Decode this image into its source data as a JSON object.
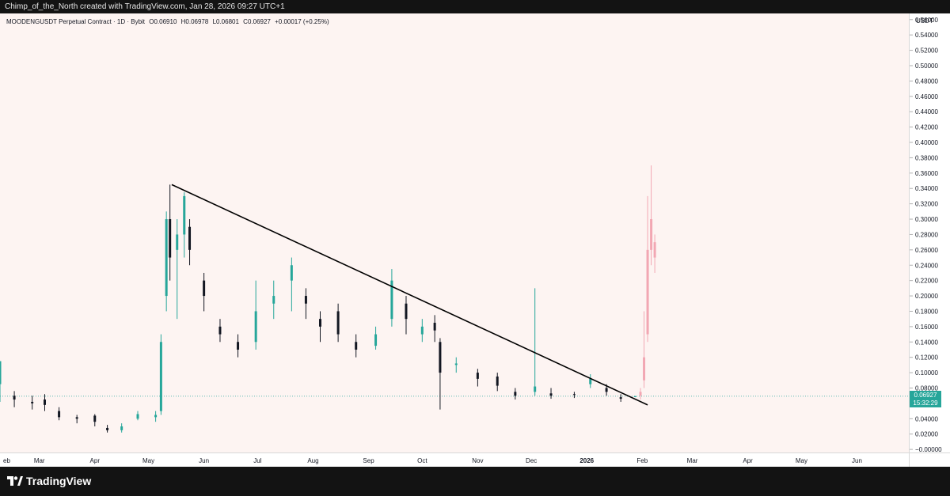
{
  "header": {
    "attribution": "Chimp_of_the_North created with TradingView.com, Jan 28, 2026 09:27 UTC+1"
  },
  "legend": {
    "symbol": "MOODENGUSDT Perpetual Contract · 1D · Bybit",
    "open": "O0.06910",
    "high": "H0.06978",
    "low": "L0.06801",
    "close": "C0.06927",
    "change": "+0.00017 (+0.25%)"
  },
  "price_axis": {
    "unit": "USDT"
  },
  "last_price": {
    "value": "0.06927",
    "countdown": "15:32:29"
  },
  "footer": {
    "brand": "TradingView"
  },
  "colors": {
    "up": "#26a69a",
    "down": "#131722",
    "projection": "#f2a7b3",
    "trendline": "#000000",
    "background": "#fdf4f2"
  },
  "chart_data": {
    "type": "candlestick",
    "symbol": "MOODENGUSDT",
    "timeframe": "1D",
    "x_ticks": [
      "eb",
      "Mar",
      "Apr",
      "May",
      "Jun",
      "Jul",
      "Aug",
      "Sep",
      "Oct",
      "Nov",
      "Dec",
      "2026",
      "Feb",
      "Mar",
      "Apr",
      "May",
      "Jun"
    ],
    "y_ticks": [
      "0.56000",
      "0.54000",
      "0.52000",
      "0.50000",
      "0.48000",
      "0.46000",
      "0.44000",
      "0.42000",
      "0.40000",
      "0.38000",
      "0.36000",
      "0.34000",
      "0.32000",
      "0.30000",
      "0.28000",
      "0.26000",
      "0.24000",
      "0.22000",
      "0.20000",
      "0.18000",
      "0.16000",
      "0.14000",
      "0.12000",
      "0.10000",
      "0.08000",
      "0.06000",
      "0.04000",
      "0.02000",
      "−0.00000"
    ],
    "ylim": [
      -0.004,
      0.568
    ],
    "xlim": [
      "2025-02-07",
      "2026-06-30"
    ],
    "price_line": 0.06927,
    "trendline": [
      [
        "2025-05-14",
        0.345
      ],
      [
        "2026-02-04",
        0.058
      ]
    ],
    "candles": [
      [
        "2025-02-07",
        0.085,
        0.115,
        0.115,
        0.062
      ],
      [
        "2025-02-15",
        0.07,
        0.065,
        0.076,
        0.055
      ],
      [
        "2025-02-25",
        0.062,
        0.06,
        0.07,
        0.052
      ],
      [
        "2025-03-04",
        0.065,
        0.058,
        0.072,
        0.05
      ],
      [
        "2025-03-12",
        0.05,
        0.042,
        0.055,
        0.038
      ],
      [
        "2025-03-22",
        0.042,
        0.04,
        0.045,
        0.034
      ],
      [
        "2025-04-01",
        0.044,
        0.036,
        0.046,
        0.03
      ],
      [
        "2025-04-08",
        0.028,
        0.025,
        0.032,
        0.022
      ],
      [
        "2025-04-16",
        0.025,
        0.03,
        0.034,
        0.022
      ],
      [
        "2025-04-25",
        0.04,
        0.046,
        0.05,
        0.038
      ],
      [
        "2025-05-05",
        0.042,
        0.045,
        0.05,
        0.036
      ],
      [
        "2025-05-08",
        0.05,
        0.14,
        0.15,
        0.045
      ],
      [
        "2025-05-11",
        0.2,
        0.3,
        0.31,
        0.18
      ],
      [
        "2025-05-13",
        0.3,
        0.25,
        0.345,
        0.22
      ],
      [
        "2025-05-17",
        0.26,
        0.28,
        0.3,
        0.17
      ],
      [
        "2025-05-21",
        0.28,
        0.33,
        0.335,
        0.25
      ],
      [
        "2025-05-24",
        0.29,
        0.26,
        0.3,
        0.24
      ],
      [
        "2025-06-01",
        0.22,
        0.2,
        0.23,
        0.18
      ],
      [
        "2025-06-10",
        0.16,
        0.15,
        0.17,
        0.14
      ],
      [
        "2025-06-20",
        0.14,
        0.13,
        0.15,
        0.12
      ],
      [
        "2025-06-30",
        0.14,
        0.18,
        0.22,
        0.13
      ],
      [
        "2025-07-10",
        0.19,
        0.2,
        0.22,
        0.17
      ],
      [
        "2025-07-20",
        0.22,
        0.24,
        0.25,
        0.18
      ],
      [
        "2025-07-28",
        0.2,
        0.19,
        0.21,
        0.17
      ],
      [
        "2025-08-05",
        0.17,
        0.16,
        0.18,
        0.14
      ],
      [
        "2025-08-15",
        0.18,
        0.15,
        0.19,
        0.14
      ],
      [
        "2025-08-25",
        0.14,
        0.13,
        0.15,
        0.12
      ],
      [
        "2025-09-05",
        0.135,
        0.15,
        0.16,
        0.13
      ],
      [
        "2025-09-14",
        0.17,
        0.22,
        0.235,
        0.16
      ],
      [
        "2025-09-22",
        0.19,
        0.17,
        0.2,
        0.15
      ],
      [
        "2025-10-01",
        0.15,
        0.16,
        0.17,
        0.14
      ],
      [
        "2025-10-08",
        0.165,
        0.155,
        0.175,
        0.14
      ],
      [
        "2025-10-11",
        0.14,
        0.1,
        0.145,
        0.052
      ],
      [
        "2025-10-20",
        0.11,
        0.112,
        0.12,
        0.1
      ],
      [
        "2025-11-01",
        0.1,
        0.092,
        0.105,
        0.082
      ],
      [
        "2025-11-12",
        0.095,
        0.083,
        0.1,
        0.076
      ],
      [
        "2025-11-22",
        0.075,
        0.07,
        0.08,
        0.065
      ],
      [
        "2025-12-03",
        0.075,
        0.082,
        0.21,
        0.07
      ],
      [
        "2025-12-12",
        0.073,
        0.07,
        0.08,
        0.066
      ],
      [
        "2025-12-25",
        0.072,
        0.071,
        0.075,
        0.067
      ],
      [
        "2026-01-03",
        0.085,
        0.092,
        0.098,
        0.08
      ],
      [
        "2026-01-12",
        0.08,
        0.075,
        0.085,
        0.07
      ],
      [
        "2026-01-20",
        0.068,
        0.066,
        0.072,
        0.062
      ],
      [
        "2026-01-28",
        0.0691,
        0.06927,
        0.06978,
        0.06801
      ]
    ],
    "projection": [
      [
        "2026-01-31",
        0.07,
        0.075,
        0.08,
        0.065
      ],
      [
        "2026-02-02",
        0.09,
        0.12,
        0.18,
        0.08
      ],
      [
        "2026-02-04",
        0.15,
        0.26,
        0.33,
        0.14
      ],
      [
        "2026-02-06",
        0.26,
        0.3,
        0.37,
        0.24
      ],
      [
        "2026-02-08",
        0.27,
        0.25,
        0.28,
        0.23
      ]
    ]
  }
}
